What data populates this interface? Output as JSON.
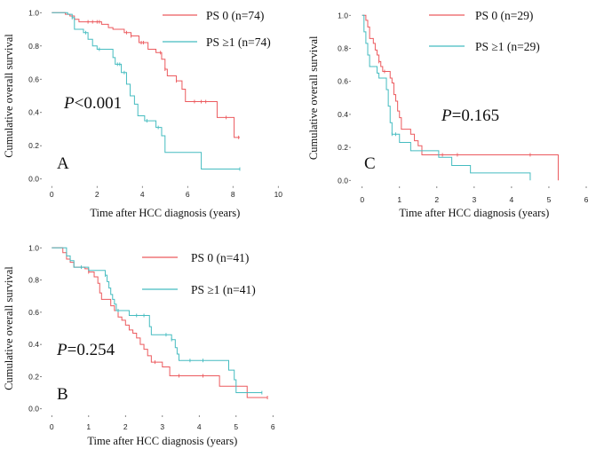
{
  "colors": {
    "ps0": "#ec5a5e",
    "ps1": "#45bcc0"
  },
  "chart_data": [
    {
      "type": "line",
      "subtype": "kaplan-meier",
      "panel_label": "A",
      "xlabel": "Time after HCC diagnosis (years)",
      "ylabel": "Cumulative overall survival",
      "xlim": [
        0,
        10
      ],
      "ylim": [
        0,
        1
      ],
      "xticks": [
        "0",
        "2",
        "4",
        "6",
        "8",
        "10"
      ],
      "yticks": [
        "0.0",
        "0.2",
        "0.4",
        "0.6",
        "0.8",
        "1.0"
      ],
      "annotation": {
        "italic": "P",
        "text": "<0.001"
      },
      "legend_position": "top-right",
      "series": [
        {
          "name": "PS 0 (n=74)",
          "color_key": "ps0",
          "steps": [
            [
              0,
              1
            ],
            [
              0.6,
              0.99
            ],
            [
              0.8,
              0.98
            ],
            [
              1.0,
              0.96
            ],
            [
              1.2,
              0.945
            ],
            [
              2.2,
              0.93
            ],
            [
              2.5,
              0.91
            ],
            [
              2.7,
              0.9
            ],
            [
              3.2,
              0.88
            ],
            [
              3.5,
              0.86
            ],
            [
              3.85,
              0.82
            ],
            [
              4.25,
              0.78
            ],
            [
              4.6,
              0.76
            ],
            [
              4.85,
              0.72
            ],
            [
              5.0,
              0.66
            ],
            [
              5.1,
              0.62
            ],
            [
              5.5,
              0.59
            ],
            [
              5.75,
              0.54
            ],
            [
              5.9,
              0.465
            ],
            [
              7.3,
              0.37
            ],
            [
              8.05,
              0.25
            ]
          ],
          "end": 8.3,
          "censored": [
            1.6,
            1.8,
            2.0,
            2.1,
            3.3,
            3.5,
            3.95,
            4.05,
            4.8,
            5.0,
            5.5,
            6.3,
            6.6,
            6.8,
            7.7,
            8.25
          ]
        },
        {
          "name": "PS ≥1 (n=74)",
          "color_key": "ps1",
          "steps": [
            [
              0,
              1
            ],
            [
              0.7,
              0.99
            ],
            [
              0.9,
              0.97
            ],
            [
              1.0,
              0.9
            ],
            [
              1.4,
              0.88
            ],
            [
              1.6,
              0.84
            ],
            [
              1.8,
              0.8
            ],
            [
              2.0,
              0.78
            ],
            [
              2.7,
              0.73
            ],
            [
              2.8,
              0.69
            ],
            [
              3.07,
              0.64
            ],
            [
              3.3,
              0.57
            ],
            [
              3.46,
              0.5
            ],
            [
              3.65,
              0.45
            ],
            [
              3.8,
              0.38
            ],
            [
              4.1,
              0.35
            ],
            [
              4.6,
              0.31
            ],
            [
              4.85,
              0.26
            ],
            [
              5.0,
              0.16
            ],
            [
              6.6,
              0.06
            ]
          ],
          "end": 8.3,
          "censored": [
            0.9,
            1.5,
            2.1,
            2.9,
            3.0,
            3.2,
            4.2,
            4.7,
            8.3
          ]
        }
      ]
    },
    {
      "type": "line",
      "subtype": "kaplan-meier",
      "panel_label": "C",
      "xlabel": "Time after HCC diagnosis (years)",
      "ylabel": "Cumulative overall survival",
      "xlim": [
        0,
        6
      ],
      "ylim": [
        0,
        1
      ],
      "xticks": [
        "0",
        "1",
        "2",
        "3",
        "4",
        "5",
        "6"
      ],
      "yticks": [
        "0.0",
        "0.2",
        "0.4",
        "0.6",
        "0.8",
        "1.0"
      ],
      "annotation": {
        "italic": "P",
        "text": "=0.165"
      },
      "legend_position": "top-right",
      "series": [
        {
          "name": "PS 0 (n=29)",
          "color_key": "ps0",
          "steps": [
            [
              0,
              1
            ],
            [
              0.1,
              0.97
            ],
            [
              0.15,
              0.93
            ],
            [
              0.2,
              0.86
            ],
            [
              0.3,
              0.83
            ],
            [
              0.35,
              0.79
            ],
            [
              0.4,
              0.76
            ],
            [
              0.45,
              0.72
            ],
            [
              0.5,
              0.69
            ],
            [
              0.55,
              0.66
            ],
            [
              0.75,
              0.62
            ],
            [
              0.8,
              0.59
            ],
            [
              0.85,
              0.52
            ],
            [
              0.9,
              0.48
            ],
            [
              0.95,
              0.42
            ],
            [
              1.0,
              0.38
            ],
            [
              1.05,
              0.31
            ],
            [
              1.3,
              0.28
            ],
            [
              1.4,
              0.24
            ],
            [
              1.5,
              0.21
            ],
            [
              1.6,
              0.155
            ],
            [
              5.25,
              0
            ]
          ],
          "end": 5.25,
          "censored": [
            0.45,
            0.6,
            2.15,
            2.55,
            4.5
          ]
        },
        {
          "name": "PS ≥1 (n=29)",
          "color_key": "ps1",
          "steps": [
            [
              0,
              1
            ],
            [
              0.05,
              0.9
            ],
            [
              0.1,
              0.83
            ],
            [
              0.15,
              0.76
            ],
            [
              0.2,
              0.69
            ],
            [
              0.4,
              0.65
            ],
            [
              0.45,
              0.62
            ],
            [
              0.65,
              0.55
            ],
            [
              0.7,
              0.45
            ],
            [
              0.75,
              0.35
            ],
            [
              0.8,
              0.28
            ],
            [
              1.0,
              0.23
            ],
            [
              1.3,
              0.18
            ],
            [
              2.05,
              0.14
            ],
            [
              2.4,
              0.09
            ],
            [
              2.9,
              0.045
            ],
            [
              4.5,
              0
            ]
          ],
          "end": 4.5,
          "censored": [
            0.8,
            0.9
          ]
        }
      ]
    },
    {
      "type": "line",
      "subtype": "kaplan-meier",
      "panel_label": "B",
      "xlabel": "Time after HCC diagnosis (years)",
      "ylabel": "Cumulative overall survival",
      "xlim": [
        0,
        6
      ],
      "ylim": [
        0,
        1
      ],
      "xticks": [
        "0",
        "1",
        "2",
        "3",
        "4",
        "5",
        "6"
      ],
      "yticks": [
        "0.0",
        "0.2",
        "0.4",
        "0.6",
        "0.8",
        "1.0"
      ],
      "annotation": {
        "italic": "P",
        "text": "=0.254"
      },
      "legend_position": "top-right",
      "series": [
        {
          "name": "PS 0 (n=41)",
          "color_key": "ps0",
          "steps": [
            [
              0,
              1
            ],
            [
              0.3,
              0.97
            ],
            [
              0.4,
              0.93
            ],
            [
              0.5,
              0.91
            ],
            [
              0.6,
              0.88
            ],
            [
              0.9,
              0.87
            ],
            [
              1.0,
              0.85
            ],
            [
              1.15,
              0.82
            ],
            [
              1.25,
              0.78
            ],
            [
              1.3,
              0.72
            ],
            [
              1.35,
              0.68
            ],
            [
              1.6,
              0.64
            ],
            [
              1.7,
              0.61
            ],
            [
              1.8,
              0.57
            ],
            [
              1.9,
              0.55
            ],
            [
              2.0,
              0.52
            ],
            [
              2.1,
              0.49
            ],
            [
              2.2,
              0.47
            ],
            [
              2.3,
              0.44
            ],
            [
              2.4,
              0.4
            ],
            [
              2.5,
              0.37
            ],
            [
              2.6,
              0.33
            ],
            [
              2.7,
              0.29
            ],
            [
              3.0,
              0.26
            ],
            [
              3.2,
              0.205
            ],
            [
              4.55,
              0.14
            ],
            [
              5.3,
              0.07
            ]
          ],
          "end": 5.85,
          "censored": [
            1.0,
            2.8,
            3.45,
            4.1,
            5.85
          ]
        },
        {
          "name": "PS ≥1 (n=41)",
          "color_key": "ps1",
          "steps": [
            [
              0,
              1
            ],
            [
              0.4,
              0.95
            ],
            [
              0.5,
              0.92
            ],
            [
              0.6,
              0.88
            ],
            [
              1.0,
              0.86
            ],
            [
              1.45,
              0.83
            ],
            [
              1.5,
              0.79
            ],
            [
              1.55,
              0.75
            ],
            [
              1.6,
              0.71
            ],
            [
              1.65,
              0.68
            ],
            [
              1.7,
              0.65
            ],
            [
              1.75,
              0.61
            ],
            [
              2.1,
              0.58
            ],
            [
              2.65,
              0.51
            ],
            [
              2.7,
              0.46
            ],
            [
              3.25,
              0.43
            ],
            [
              3.35,
              0.38
            ],
            [
              3.4,
              0.34
            ],
            [
              3.45,
              0.3
            ],
            [
              4.8,
              0.24
            ],
            [
              4.95,
              0.18
            ],
            [
              5.0,
              0.1
            ]
          ],
          "end": 5.7,
          "censored": [
            0.8,
            1.45,
            1.8,
            2.3,
            2.5,
            3.1,
            3.25,
            3.75,
            4.1,
            5.7
          ]
        }
      ]
    }
  ]
}
